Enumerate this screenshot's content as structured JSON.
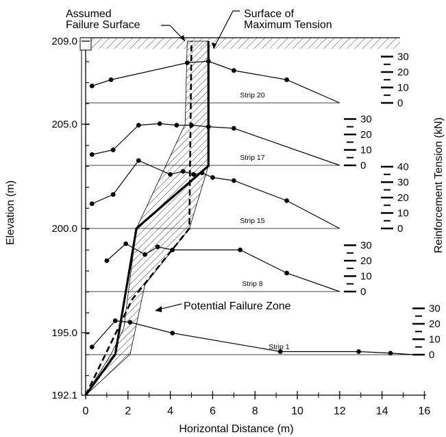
{
  "chart_data": {
    "type": "line",
    "xlabel": "Horizontal Distance (m)",
    "ylabel": "Elevation (m)",
    "y2label": "Reinforcement Tension (kN)",
    "xlim": [
      0,
      16
    ],
    "ylim": [
      192.1,
      209.0
    ],
    "x_ticks": [
      "0",
      "2",
      "4",
      "6",
      "8",
      "10",
      "12",
      "14",
      "16"
    ],
    "y_ticks": [
      "192.1",
      "195.0",
      "200.0",
      "205.0",
      "209.0"
    ],
    "annotations": {
      "assumed_failure_surface": "Assumed\nFailure Surface",
      "maximum_tension": "Surface of\nMaximum Tension",
      "potential_failure_zone": "Potential Failure Zone"
    },
    "assumed_failure_surface": [
      [
        0.0,
        192.1
      ],
      [
        2.2,
        196.6
      ],
      [
        4.9,
        200.0
      ],
      [
        5.0,
        209.0
      ]
    ],
    "surface_of_maximum_tension": [
      [
        0.0,
        192.1
      ],
      [
        1.4,
        194.0
      ],
      [
        2.4,
        200.0
      ],
      [
        5.8,
        203.0
      ],
      [
        5.8,
        209.0
      ]
    ],
    "zone_left_boundary": [
      [
        0.0,
        192.1
      ],
      [
        1.2,
        194.0
      ],
      [
        1.8,
        195.2
      ],
      [
        2.4,
        200.0
      ],
      [
        4.7,
        205.0
      ],
      [
        4.8,
        209.0
      ]
    ],
    "zone_right_boundary": [
      [
        0.0,
        192.1
      ],
      [
        2.1,
        194.0
      ],
      [
        2.8,
        197.3
      ],
      [
        4.9,
        200.0
      ],
      [
        5.8,
        203.0
      ],
      [
        5.8,
        209.0
      ]
    ],
    "strips": [
      {
        "name": "Strip 20",
        "elevation": 206.0,
        "tension_scale": [
          0,
          10,
          20,
          30
        ],
        "x": [
          0.3,
          1.2,
          4.8,
          5.8,
          7.0,
          9.5,
          12.0
        ],
        "tension": [
          11,
          15,
          26,
          27,
          21,
          15,
          0
        ]
      },
      {
        "name": "Strip 17",
        "elevation": 203.0,
        "tension_scale": [
          0,
          10,
          20,
          30
        ],
        "x": [
          0.3,
          1.3,
          2.5,
          3.5,
          4.3,
          5.0,
          5.8,
          7.0,
          12.0
        ],
        "tension": [
          7,
          10,
          26,
          27,
          26,
          26,
          25,
          24,
          0
        ]
      },
      {
        "name": "Strip 15",
        "elevation": 200.0,
        "tension_scale": [
          0,
          10,
          20,
          30,
          40
        ],
        "x": [
          0.3,
          1.3,
          2.5,
          4.0,
          4.6,
          5.1,
          5.5,
          6.0,
          7.0,
          9.5,
          12.0
        ],
        "tension": [
          16,
          22,
          44,
          35,
          37,
          35,
          36,
          33,
          31,
          18,
          0
        ]
      },
      {
        "name": "Strip 8",
        "elevation": 197.0,
        "tension_scale": [
          0,
          10,
          20,
          30
        ],
        "x": [
          1.0,
          1.9,
          2.8,
          3.4,
          4.1,
          7.3,
          9.5,
          12.0
        ],
        "tension": [
          20,
          31,
          24,
          29,
          27,
          27,
          12,
          0
        ]
      },
      {
        "name": "Strip 1",
        "elevation": 194.0,
        "tension_scale": [
          0,
          10,
          20,
          30
        ],
        "x": [
          0.3,
          1.4,
          2.1,
          4.1,
          9.2,
          12.9,
          14.4,
          15.5
        ],
        "tension": [
          5,
          22,
          21,
          14,
          2,
          2,
          1,
          0
        ]
      }
    ]
  }
}
